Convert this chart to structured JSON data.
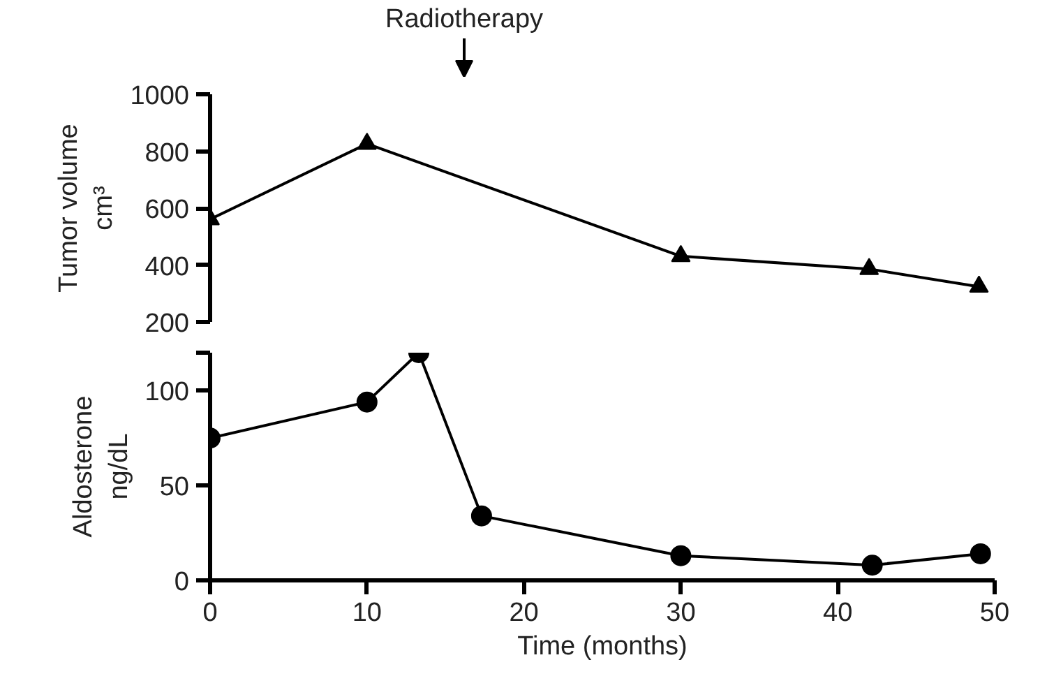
{
  "chart_data": [
    {
      "type": "line",
      "ylabel": "Tumor volume\ncm³",
      "x": [
        0,
        10,
        30,
        42,
        49
      ],
      "series": [
        {
          "color": "#000000",
          "values": [
            561,
            826,
            431,
            386,
            324
          ]
        }
      ],
      "marker": "triangle",
      "xlim": [
        0,
        50
      ],
      "ylim": [
        200,
        1000
      ],
      "yticks": [
        200,
        400,
        600,
        800,
        1000
      ],
      "tick_labels": "y",
      "grid": false,
      "annotations": [
        "Radiotherapy"
      ]
    },
    {
      "type": "line",
      "ylabel": "Aldosterone\nng/dL",
      "xlabel": "Time (months)",
      "x": [
        0,
        10,
        13.3,
        17.3,
        30,
        42.2,
        49.1
      ],
      "series": [
        {
          "color": "#000000",
          "values": [
            75,
            94,
            120,
            34,
            13,
            8,
            14
          ]
        }
      ],
      "marker": "circle",
      "xlim": [
        0,
        50
      ],
      "xticks": [
        0,
        10,
        20,
        30,
        40,
        50
      ],
      "ylim": [
        0,
        120
      ],
      "yticks": [
        0,
        50,
        100,
        {
          "value": 120,
          "label": null
        }
      ],
      "grid": false
    }
  ]
}
